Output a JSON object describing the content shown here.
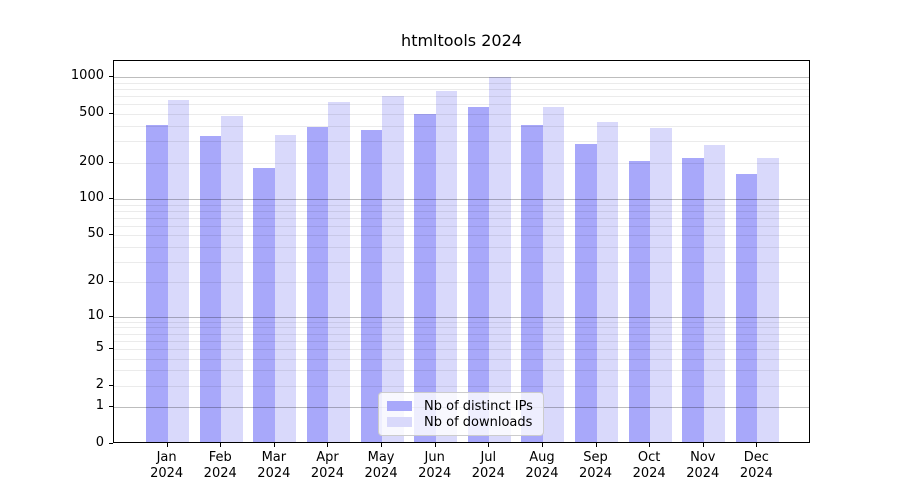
{
  "title": "htmltools 2024",
  "chart_data": {
    "type": "bar",
    "months": [
      "Jan",
      "Feb",
      "Mar",
      "Apr",
      "May",
      "Jun",
      "Jul",
      "Aug",
      "Sep",
      "Oct",
      "Nov",
      "Dec"
    ],
    "year": "2024",
    "categories": [
      "Jan 2024",
      "Feb 2024",
      "Mar 2024",
      "Apr 2024",
      "May 2024",
      "Jun 2024",
      "Jul 2024",
      "Aug 2024",
      "Sep 2024",
      "Oct 2024",
      "Nov 2024",
      "Dec 2024"
    ],
    "series": [
      {
        "name": "Nb of distinct IPs",
        "color": "#a8a8fa",
        "values": [
          390,
          320,
          175,
          375,
          355,
          485,
          550,
          390,
          275,
          200,
          210,
          155
        ]
      },
      {
        "name": "Nb of downloads",
        "color": "#d9d9fb",
        "values": [
          630,
          465,
          325,
          610,
          680,
          750,
          975,
          555,
          415,
          370,
          270,
          210
        ]
      }
    ],
    "yscale": "log1p",
    "yticks": [
      0,
      1,
      2,
      5,
      10,
      20,
      50,
      100,
      200,
      500,
      1000
    ],
    "ylim": [
      0,
      1360
    ],
    "grid": "horizontal, major on decades, faint minors",
    "legend_position": "lower center"
  },
  "colors": {
    "grid_major": "rgba(0,0,0,0.26)",
    "grid_minor": "rgba(0,0,0,0.08)"
  }
}
